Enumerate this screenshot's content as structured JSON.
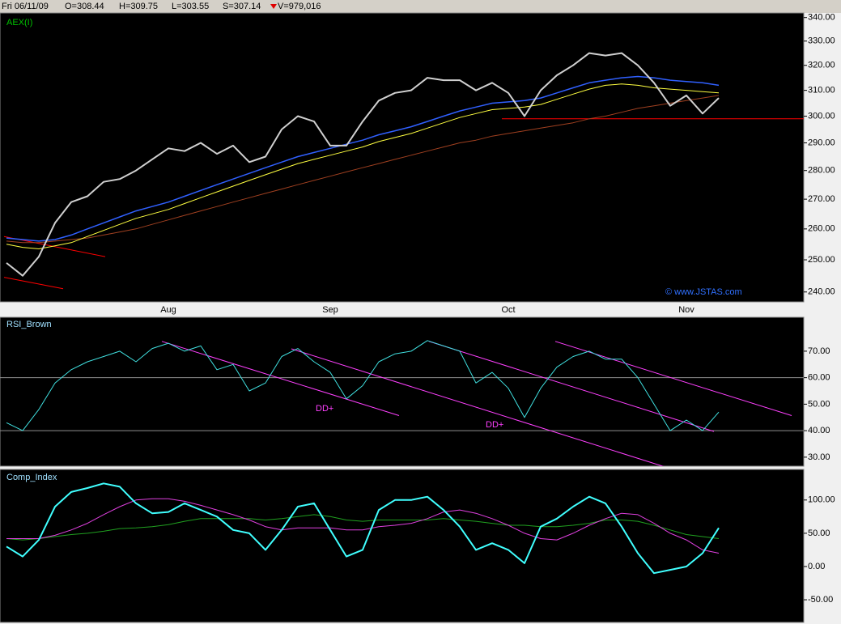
{
  "header": {
    "date": "Fri 06/11/09",
    "open": "O=308.44",
    "high": "H=309.75",
    "low": "L=303.55",
    "close": "S=307.14",
    "volume": "V=979,016"
  },
  "chart_data": [
    {
      "type": "line",
      "title": "AEX(I)",
      "note": "© www.JSTAS.com",
      "log_scale": true,
      "categories": [
        null,
        null,
        null,
        null,
        null,
        null,
        null,
        null,
        null,
        null,
        "Aug",
        null,
        null,
        null,
        null,
        null,
        null,
        null,
        null,
        null,
        "Sep",
        null,
        null,
        null,
        null,
        null,
        null,
        null,
        null,
        null,
        null,
        "Oct",
        null,
        null,
        null,
        null,
        null,
        null,
        null,
        null,
        null,
        null,
        "Nov",
        null,
        null
      ],
      "xlim": [
        -0.4,
        49.25
      ],
      "ylim": [
        237,
        342
      ],
      "yticks": [
        {
          "value": 240,
          "label": "240.00"
        },
        {
          "value": 250,
          "label": "250.00"
        },
        {
          "value": 260,
          "label": "260.00"
        },
        {
          "value": 270,
          "label": "270.00"
        },
        {
          "value": 280,
          "label": "280.00"
        },
        {
          "value": 290,
          "label": "290.00"
        },
        {
          "value": 300,
          "label": "300.00"
        },
        {
          "value": 310,
          "label": "310.00"
        },
        {
          "value": 320,
          "label": "320.00"
        },
        {
          "value": 330,
          "label": "330.00"
        },
        {
          "value": 340,
          "label": "340.00"
        }
      ],
      "series": [
        {
          "color": "#a04020",
          "width": 1,
          "values": [
            256,
            255.5,
            255.5,
            256,
            256.5,
            257,
            258,
            259,
            260,
            261.5,
            263,
            264.5,
            266,
            267.5,
            269,
            270.5,
            272,
            273.5,
            275,
            276.5,
            278,
            279.5,
            281,
            282.5,
            284,
            285.5,
            287,
            288.5,
            290,
            291,
            292.5,
            293.5,
            294.5,
            295.5,
            296.5,
            297.5,
            299,
            300,
            301.5,
            303,
            304,
            305,
            306,
            307,
            308
          ]
        },
        {
          "color": "#ffff40",
          "width": 1,
          "values": [
            255,
            254,
            253.5,
            254.5,
            255.5,
            257.5,
            259.5,
            261.5,
            263.5,
            265,
            266.5,
            268.5,
            270.5,
            272.5,
            274.5,
            276.5,
            278.5,
            280.5,
            282.5,
            284,
            285.5,
            287,
            288.5,
            290.5,
            292,
            293.5,
            295.5,
            297.5,
            299.5,
            301,
            302.5,
            303,
            303.5,
            304.5,
            306.5,
            308.5,
            310.5,
            312,
            312.5,
            312,
            311,
            310.5,
            310,
            309.5,
            309
          ]
        },
        {
          "color": "#3060ff",
          "width": 1.5,
          "values": [
            257,
            256.5,
            256,
            256.5,
            258,
            260,
            262,
            264,
            266,
            267.5,
            269,
            271,
            273,
            275,
            277,
            279,
            281,
            283,
            285,
            286.5,
            288,
            289.5,
            291,
            293,
            294.5,
            296,
            298,
            300,
            302,
            303.5,
            305,
            305.5,
            306,
            307,
            309,
            311,
            313,
            314,
            315,
            315.5,
            315,
            314,
            313.5,
            313,
            312
          ]
        },
        {
          "color": "#d0d0d0",
          "width": 2,
          "values": [
            249,
            245,
            251,
            262,
            269,
            271,
            276,
            277,
            280,
            284,
            288,
            287,
            290,
            286,
            289,
            283,
            285,
            295,
            300,
            298,
            289,
            289,
            298,
            306,
            309,
            310,
            315,
            314,
            314,
            310,
            313,
            309,
            300,
            310,
            316,
            320,
            325,
            324,
            325,
            320,
            313,
            304,
            308,
            301,
            307
          ]
        }
      ],
      "lines": [
        {
          "color": "#ff0000",
          "x": [
            -0.15,
            6.1
          ],
          "y": [
            257.5,
            251
          ]
        },
        {
          "color": "#ff0000",
          "x": [
            -0.15,
            3.5
          ],
          "y": [
            244.5,
            241
          ]
        },
        {
          "color": "#ff0000",
          "x": [
            30.6,
            49.25
          ],
          "y": [
            299,
            299
          ]
        }
      ]
    },
    {
      "type": "line",
      "title": "RSI_Brown",
      "annotations": [
        "DD+",
        "DD+"
      ],
      "xlim": [
        -0.4,
        49.25
      ],
      "ylim": [
        26.6,
        82.8
      ],
      "yticks": [
        {
          "value": 30,
          "label": "30.00"
        },
        {
          "value": 40,
          "label": "40.00"
        },
        {
          "value": 50,
          "label": "50.00"
        },
        {
          "value": 60,
          "label": "60.00"
        },
        {
          "value": 70,
          "label": "70.00"
        }
      ],
      "reference_lines": [
        60,
        40
      ],
      "series": [
        {
          "color": "#40e0e0",
          "width": 1,
          "values": [
            43,
            40,
            48,
            58,
            63,
            66,
            68,
            70,
            66,
            71,
            73,
            70,
            72,
            63,
            65,
            55,
            58,
            68,
            71,
            66,
            62,
            52,
            57,
            66,
            69,
            70,
            74,
            72,
            70,
            58,
            62,
            56,
            45,
            56,
            64,
            68,
            70,
            67,
            67,
            60,
            50,
            40,
            44,
            40,
            47
          ]
        }
      ],
      "lines": [
        {
          "color": "#ff40ff",
          "x": [
            9.6,
            24.25
          ],
          "y": [
            73.7,
            45.7
          ]
        },
        {
          "color": "#ff40ff",
          "x": [
            17.6,
            41
          ],
          "y": [
            70.9,
            25.7
          ]
        },
        {
          "color": "#ff40ff",
          "x": [
            26.1,
            43.7
          ],
          "y": [
            73.7,
            39.7
          ]
        },
        {
          "color": "#ff40ff",
          "x": [
            33.9,
            48.5
          ],
          "y": [
            73.7,
            45.7
          ]
        }
      ]
    },
    {
      "type": "line",
      "title": "Comp_Index",
      "xlim": [
        -0.4,
        49.25
      ],
      "ylim": [
        -84,
        146
      ],
      "yticks": [
        {
          "value": -50,
          "label": "-50.00"
        },
        {
          "value": 0,
          "label": "0.00"
        },
        {
          "value": 50,
          "label": "50.00"
        },
        {
          "value": 100,
          "label": "100.00"
        }
      ],
      "series": [
        {
          "color": "#20a020",
          "width": 1,
          "values": [
            42,
            40,
            42,
            45,
            48,
            50,
            53,
            57,
            58,
            60,
            63,
            68,
            72,
            72,
            72,
            72,
            70,
            72,
            75,
            78,
            75,
            70,
            68,
            70,
            70,
            70,
            70,
            72,
            70,
            68,
            65,
            62,
            62,
            60,
            60,
            62,
            65,
            70,
            70,
            68,
            62,
            55,
            48,
            45,
            42
          ]
        },
        {
          "color": "#e040e0",
          "width": 1,
          "values": [
            42,
            42,
            42,
            47,
            55,
            65,
            78,
            90,
            100,
            102,
            102,
            98,
            92,
            85,
            78,
            70,
            60,
            55,
            58,
            58,
            58,
            55,
            55,
            60,
            62,
            65,
            72,
            82,
            85,
            80,
            72,
            62,
            50,
            42,
            40,
            50,
            62,
            72,
            80,
            78,
            65,
            50,
            40,
            25,
            20
          ]
        },
        {
          "color": "#40ffff",
          "width": 2,
          "values": [
            30,
            15,
            40,
            90,
            112,
            118,
            125,
            120,
            95,
            80,
            82,
            95,
            85,
            75,
            55,
            50,
            25,
            55,
            90,
            95,
            55,
            15,
            25,
            85,
            100,
            100,
            105,
            85,
            60,
            25,
            35,
            25,
            5,
            60,
            72,
            90,
            105,
            95,
            60,
            20,
            -10,
            -5,
            0,
            20,
            58
          ]
        }
      ]
    }
  ]
}
